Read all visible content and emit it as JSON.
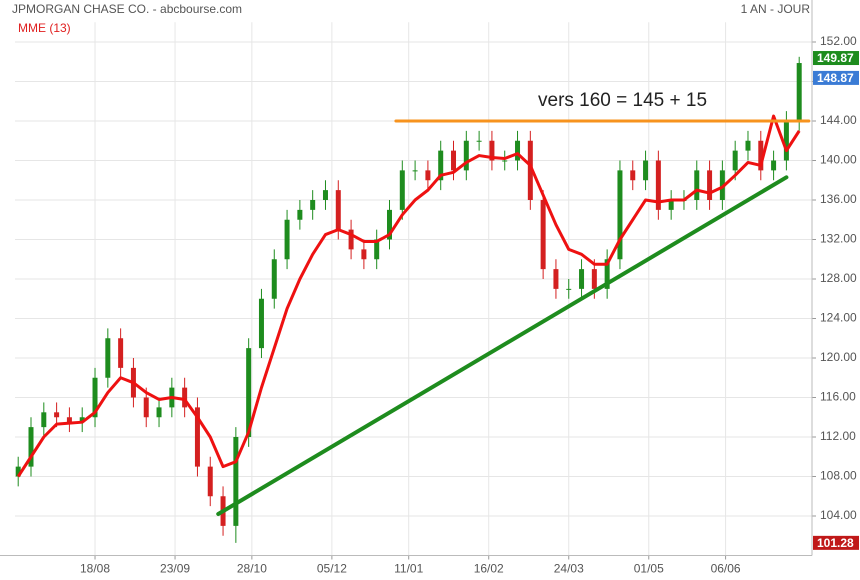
{
  "chart_data": {
    "type": "candlestick",
    "title": "JPMORGAN CHASE CO. - abcbourse.com",
    "period": "1 AN - JOUR",
    "annotation": "vers 160 = 145 + 15",
    "x": [
      0,
      4,
      8,
      12,
      16,
      20,
      24,
      28,
      32,
      36,
      40,
      44,
      48,
      52,
      56,
      60,
      64,
      68,
      72,
      76,
      80,
      84,
      88,
      92,
      96,
      100,
      104,
      108,
      112,
      116,
      120,
      124,
      128,
      132,
      136,
      140,
      144,
      148,
      152,
      156,
      160,
      164,
      168,
      172,
      176,
      180,
      184,
      188,
      192,
      196,
      200,
      204,
      208,
      212,
      216,
      220,
      224,
      228,
      232,
      236,
      240,
      244
    ],
    "open": [
      108,
      109,
      113,
      114.5,
      114,
      113.5,
      114,
      118,
      122,
      119,
      116,
      114,
      115,
      117,
      115,
      109,
      106,
      103,
      112,
      121,
      126,
      130,
      134,
      135,
      136,
      137,
      133,
      131,
      130,
      132,
      135,
      139,
      139,
      138,
      141,
      139,
      142,
      142,
      140,
      140,
      142,
      136,
      129,
      127,
      127,
      129,
      127,
      130,
      139,
      138,
      140,
      135,
      136,
      136,
      139,
      136,
      139,
      141,
      142,
      139,
      140,
      144
    ],
    "high": [
      110,
      114,
      115.5,
      115.5,
      115,
      115,
      119,
      123,
      123,
      120,
      117,
      116,
      118,
      118,
      116,
      110,
      107,
      113,
      122,
      127,
      131,
      135,
      136,
      137,
      138,
      138,
      134,
      132,
      133,
      136,
      140,
      140,
      140,
      142,
      142,
      143,
      143,
      143,
      141,
      143,
      143,
      137,
      130,
      128,
      130,
      130,
      131,
      140,
      140,
      141,
      141,
      137,
      137,
      140,
      140,
      140,
      142,
      143,
      143,
      141,
      145,
      150.5
    ],
    "low": [
      107,
      108,
      112,
      113,
      112.5,
      112.5,
      113,
      117,
      118,
      115,
      113,
      113,
      114,
      114,
      108,
      105,
      102,
      101.28,
      111,
      120,
      125,
      129,
      133,
      134,
      135,
      132,
      130,
      129,
      129,
      131,
      134,
      138,
      137,
      137,
      138,
      138,
      141,
      139,
      139,
      139,
      135,
      128,
      126,
      126,
      126,
      126,
      126,
      129,
      137,
      137,
      134,
      134,
      135,
      135,
      135,
      135,
      138,
      140,
      138,
      138,
      139,
      143
    ],
    "close": [
      109,
      113,
      114.5,
      114,
      113.5,
      114,
      118,
      122,
      119,
      116,
      114,
      115,
      117,
      115,
      109,
      106,
      103,
      112,
      121,
      126,
      130,
      134,
      135,
      136,
      137,
      133,
      131,
      130,
      132,
      135,
      139,
      139,
      138,
      141,
      139,
      142,
      142,
      140,
      140,
      142,
      136,
      129,
      127,
      127,
      129,
      127,
      130,
      139,
      138,
      140,
      135,
      136,
      136,
      139,
      136,
      139,
      141,
      142,
      139,
      140,
      144,
      149.87
    ],
    "up_color": "#1e8c1e",
    "down_color": "#d42020",
    "series": [
      {
        "name": "MME (13)",
        "color": "#ee1111",
        "values": [
          108,
          110,
          112,
          113.3,
          113.4,
          113.5,
          114.5,
          116.5,
          118,
          117.5,
          116.5,
          115.8,
          116,
          115.8,
          114,
          112,
          109,
          109.5,
          112.5,
          117,
          121,
          125,
          128,
          130.5,
          132.5,
          133,
          132.5,
          131.8,
          131.8,
          132.5,
          134.5,
          136,
          137,
          138.5,
          138.8,
          139.8,
          140.5,
          140.3,
          140.2,
          140.7,
          139.5,
          136.5,
          133.5,
          131,
          130.5,
          129.5,
          129.5,
          132,
          134,
          136,
          135.8,
          136,
          136,
          137,
          136.7,
          137.3,
          138.5,
          139.8,
          139.5,
          144.5,
          141,
          143
        ]
      }
    ],
    "trend_lines": [
      {
        "color": "#f7931e",
        "x": [
          118,
          247
        ],
        "y": [
          144,
          144
        ]
      },
      {
        "color": "#1e8c1e",
        "x": [
          62.5,
          240
        ],
        "y": [
          104.2,
          138.3
        ]
      }
    ],
    "price_tags": [
      {
        "value": 149.87,
        "color": "#1e8c1e"
      },
      {
        "value": 148.87,
        "color": "#3a7bd5"
      },
      {
        "value": 101.28,
        "color": "#c01818"
      }
    ],
    "xlim": [
      -1,
      248
    ],
    "ylim": [
      100,
      154
    ],
    "xticks": [
      {
        "value": 24,
        "label": "18/08"
      },
      {
        "value": 49,
        "label": "23/09"
      },
      {
        "value": 73,
        "label": "28/10"
      },
      {
        "value": 98,
        "label": "05/12"
      },
      {
        "value": 122,
        "label": "11/01"
      },
      {
        "value": 147,
        "label": "16/02"
      },
      {
        "value": 172,
        "label": "24/03"
      },
      {
        "value": 197,
        "label": "01/05"
      },
      {
        "value": 221,
        "label": "06/06"
      }
    ],
    "yticks": [
      {
        "value": 104,
        "label": "104.00"
      },
      {
        "value": 108,
        "label": "108.00"
      },
      {
        "value": 112,
        "label": "112.00"
      },
      {
        "value": 116,
        "label": "116.00"
      },
      {
        "value": 120,
        "label": "120.00"
      },
      {
        "value": 124,
        "label": "124.00"
      },
      {
        "value": 128,
        "label": "128.00"
      },
      {
        "value": 132,
        "label": "132.00"
      },
      {
        "value": 136,
        "label": "136.00"
      },
      {
        "value": 140,
        "label": "140.00"
      },
      {
        "value": 144,
        "label": "144.00"
      },
      {
        "value": 148,
        "label": "148.00"
      },
      {
        "value": 152,
        "label": "152.00"
      }
    ],
    "grid": true
  }
}
